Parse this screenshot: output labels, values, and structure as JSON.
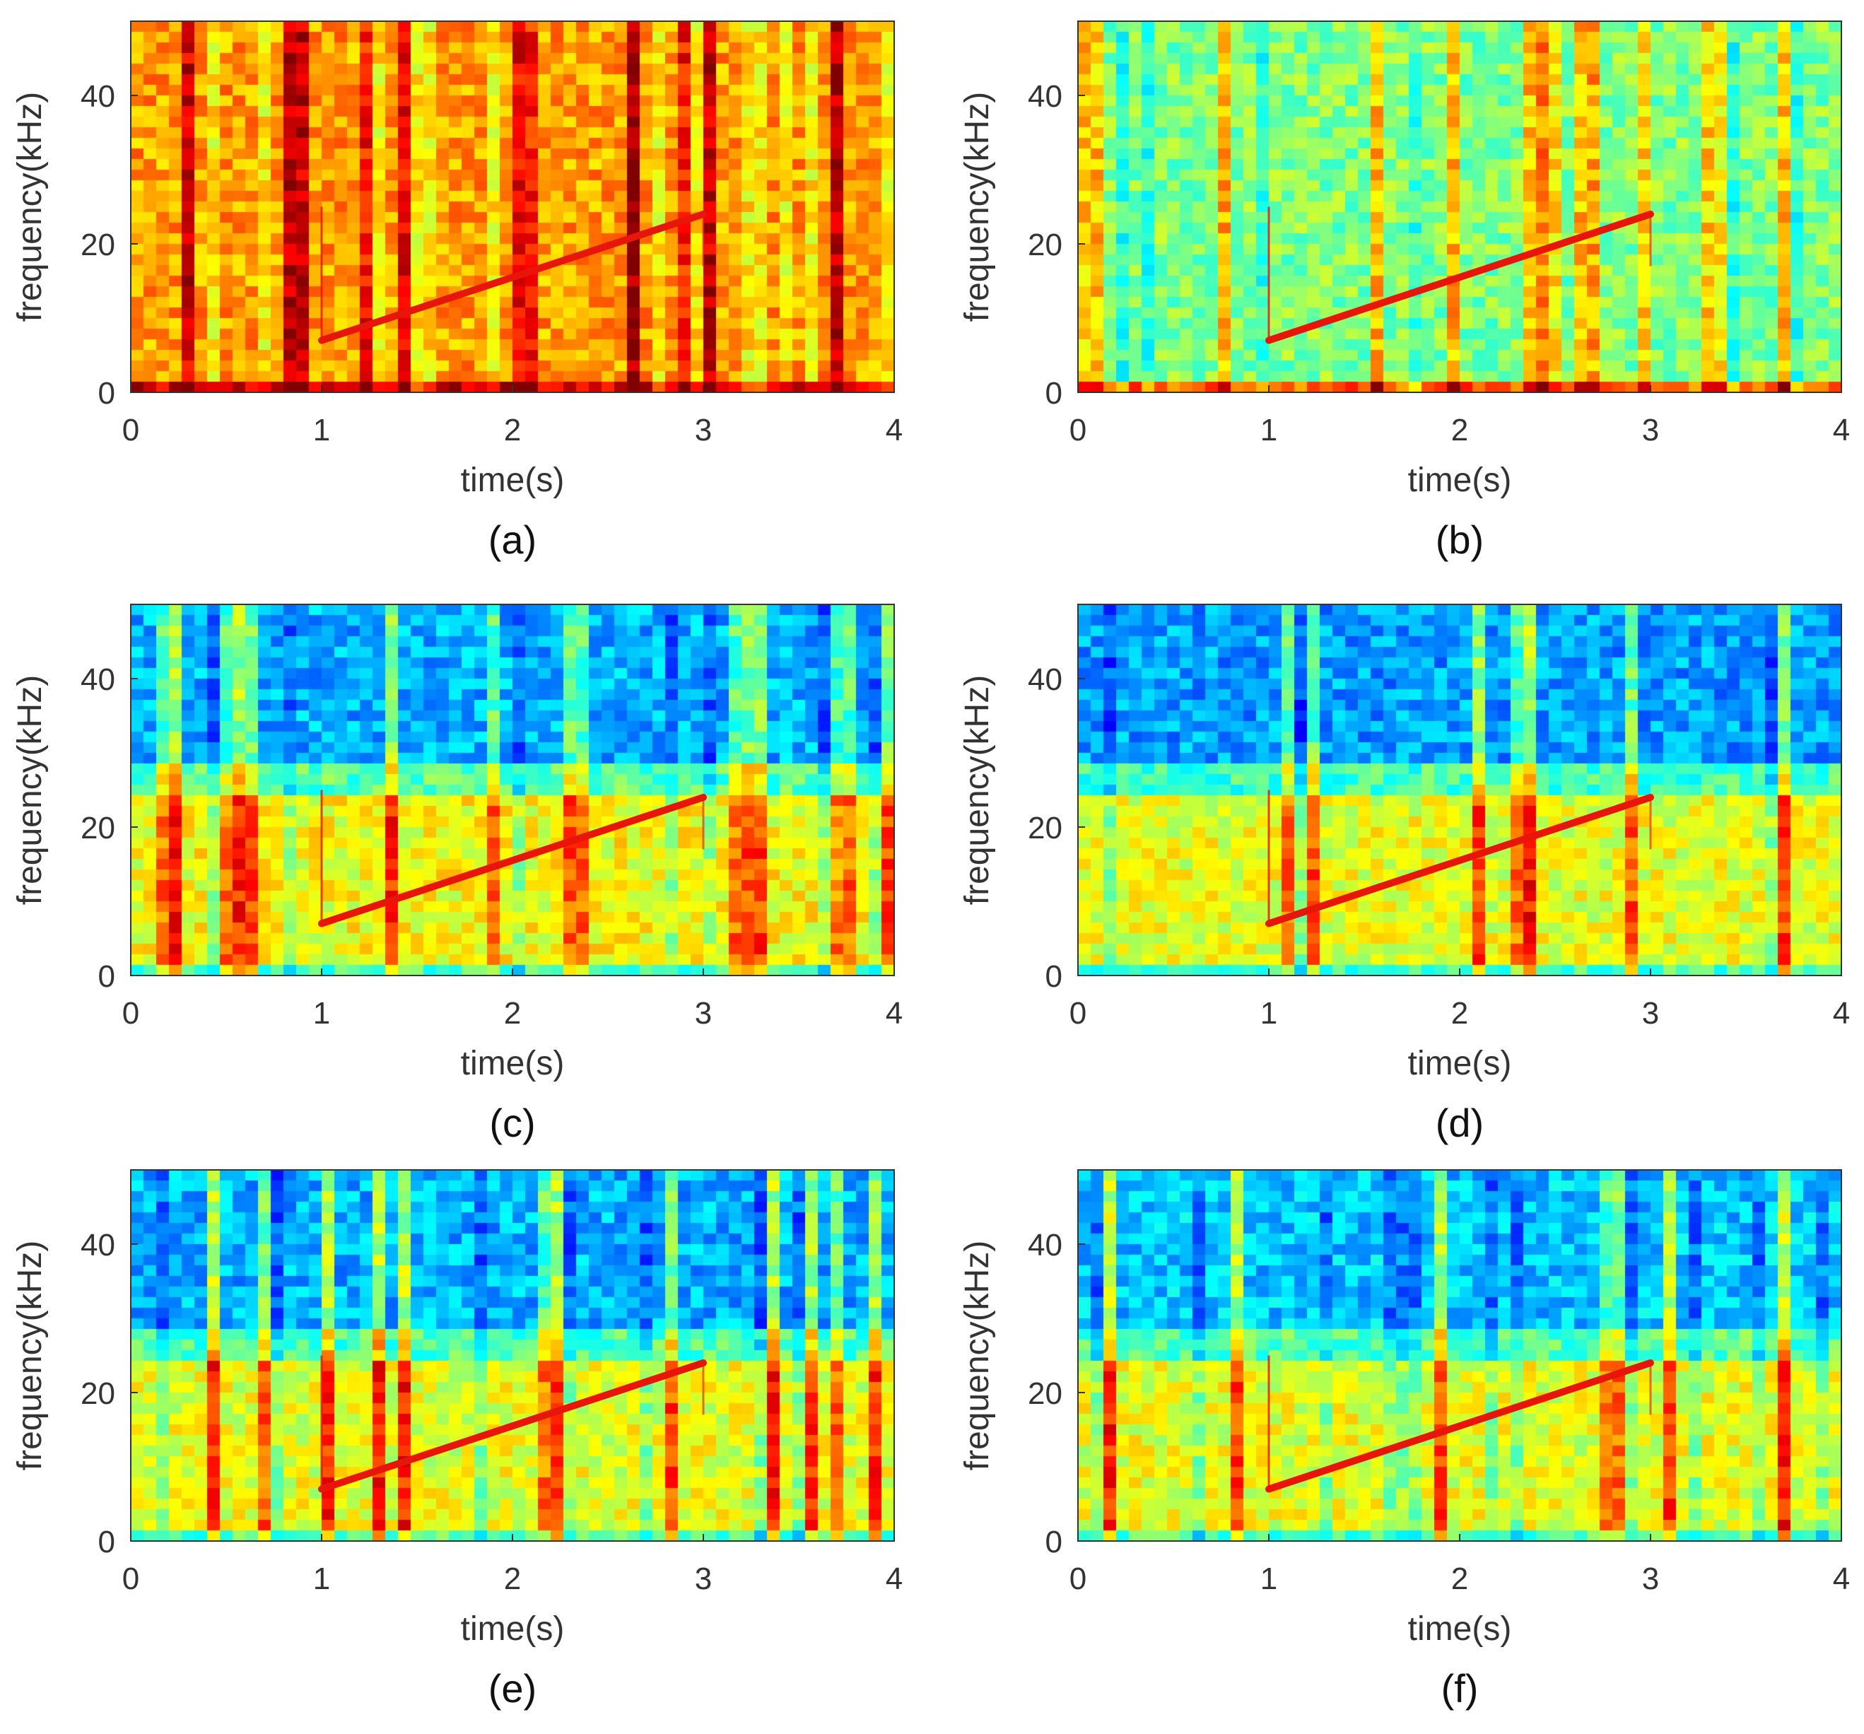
{
  "figure": {
    "panel_count": 6
  },
  "colors": {
    "colormap": [
      "#00008f",
      "#0000ff",
      "#0080ff",
      "#00ffff",
      "#80ff80",
      "#ffff00",
      "#ff8000",
      "#ff0000",
      "#800000"
    ],
    "chirp": "#e8150a",
    "axis": "#333333"
  },
  "chart_data": [
    {
      "type": "heatmap",
      "panel": "a",
      "caption": "(a)",
      "xlabel": "time(s)",
      "ylabel": "frequency(kHz)",
      "xlim": [
        0,
        4
      ],
      "ylim": [
        0,
        50
      ],
      "xticks": [
        "0",
        "1",
        "2",
        "3",
        "4"
      ],
      "yticks": [
        "0",
        "20",
        "40"
      ],
      "chirp": {
        "t_start": 1,
        "f_start": 7,
        "t_end": 3,
        "f_end": 24
      },
      "background": {
        "low_band_max_khz": 50,
        "low_band_level": 0.72,
        "high_band_level": 0.72,
        "base_line_level": 0.92
      }
    },
    {
      "type": "heatmap",
      "panel": "b",
      "caption": "(b)",
      "xlabel": "time(s)",
      "ylabel": "frequency(kHz)",
      "xlim": [
        0,
        4
      ],
      "ylim": [
        0,
        50
      ],
      "xticks": [
        "0",
        "1",
        "2",
        "3",
        "4"
      ],
      "yticks": [
        "0",
        "20",
        "40"
      ],
      "chirp": {
        "t_start": 1,
        "f_start": 7,
        "t_end": 3,
        "f_end": 24
      },
      "background": {
        "low_band_max_khz": 50,
        "low_band_level": 0.5,
        "high_band_level": 0.5,
        "base_line_level": 0.78
      }
    },
    {
      "type": "heatmap",
      "panel": "c",
      "caption": "(c)",
      "xlabel": "time(s)",
      "ylabel": "frequency(kHz)",
      "xlim": [
        0,
        4
      ],
      "ylim": [
        0,
        50
      ],
      "xticks": [
        "0",
        "1",
        "2",
        "3",
        "4"
      ],
      "yticks": [
        "0",
        "20",
        "40"
      ],
      "chirp": {
        "t_start": 1,
        "f_start": 7,
        "t_end": 3,
        "f_end": 24
      },
      "background": {
        "low_band_max_khz": 26,
        "low_band_level": 0.62,
        "high_band_level": 0.3,
        "base_line_level": 0.45
      }
    },
    {
      "type": "heatmap",
      "panel": "d",
      "caption": "(d)",
      "xlabel": "time(s)",
      "ylabel": "frequency(kHz)",
      "xlim": [
        0,
        4
      ],
      "ylim": [
        0,
        50
      ],
      "xticks": [
        "0",
        "1",
        "2",
        "3",
        "4"
      ],
      "yticks": [
        "0",
        "20",
        "40"
      ],
      "chirp": {
        "t_start": 1,
        "f_start": 7,
        "t_end": 3,
        "f_end": 24
      },
      "background": {
        "low_band_max_khz": 26,
        "low_band_level": 0.6,
        "high_band_level": 0.28,
        "base_line_level": 0.45
      }
    },
    {
      "type": "heatmap",
      "panel": "e",
      "caption": "(e)",
      "xlabel": "time(s)",
      "ylabel": "frequency(kHz)",
      "xlim": [
        0,
        4
      ],
      "ylim": [
        0,
        50
      ],
      "xticks": [
        "0",
        "1",
        "2",
        "3",
        "4"
      ],
      "yticks": [
        "0",
        "20",
        "40"
      ],
      "chirp": {
        "t_start": 1,
        "f_start": 7,
        "t_end": 3,
        "f_end": 24
      },
      "background": {
        "low_band_max_khz": 26,
        "low_band_level": 0.6,
        "high_band_level": 0.3,
        "base_line_level": 0.45
      }
    },
    {
      "type": "heatmap",
      "panel": "f",
      "caption": "(f)",
      "xlabel": "time(s)",
      "ylabel": "frequency(kHz)",
      "xlim": [
        0,
        4
      ],
      "ylim": [
        0,
        50
      ],
      "xticks": [
        "0",
        "1",
        "2",
        "3",
        "4"
      ],
      "yticks": [
        "0",
        "20",
        "40"
      ],
      "chirp": {
        "t_start": 1,
        "f_start": 7,
        "t_end": 3,
        "f_end": 24
      },
      "background": {
        "low_band_max_khz": 26,
        "low_band_level": 0.6,
        "high_band_level": 0.32,
        "base_line_level": 0.45
      }
    }
  ]
}
